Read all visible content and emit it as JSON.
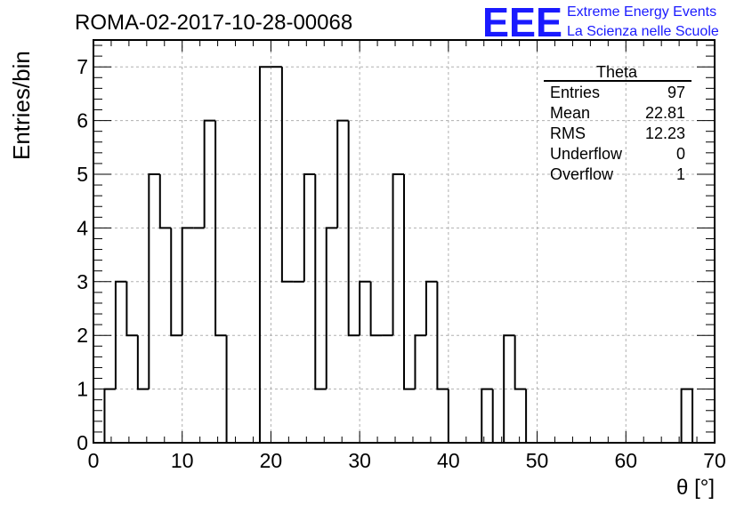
{
  "header": {
    "run_title": "ROMA-02-2017-10-28-00068",
    "logo_text": "EEE",
    "logo_line1": "Extreme Energy Events",
    "logo_line2": "La Scienza nelle Scuole"
  },
  "colors": {
    "logo": "#1a1aff",
    "histogram": "#000000",
    "grid": "#b0b0b0"
  },
  "stats": {
    "title": "Theta",
    "rows": [
      {
        "label": "Entries",
        "value": "97"
      },
      {
        "label": "Mean",
        "value": "22.81"
      },
      {
        "label": "RMS",
        "value": "12.23"
      },
      {
        "label": "Underflow",
        "value": "0"
      },
      {
        "label": "Overflow",
        "value": "1"
      }
    ]
  },
  "chart_data": {
    "type": "bar",
    "title": "",
    "xlabel": "θ [°]",
    "ylabel": "Entries/bin",
    "xlim": [
      0,
      70
    ],
    "ylim": [
      0,
      7.5
    ],
    "bin_width": 1.25,
    "bin_start": 0,
    "values": [
      0,
      1,
      3,
      2,
      1,
      5,
      4,
      2,
      4,
      4,
      6,
      2,
      0,
      0,
      0,
      7,
      7,
      3,
      3,
      5,
      1,
      4,
      6,
      2,
      3,
      2,
      2,
      5,
      1,
      2,
      3,
      1,
      0,
      0,
      0,
      1,
      0,
      2,
      1,
      0,
      0,
      0,
      0,
      0,
      0,
      0,
      0,
      0,
      0,
      0,
      0,
      0,
      0,
      1
    ],
    "xticks": [
      0,
      10,
      20,
      30,
      40,
      50,
      60,
      70
    ],
    "yticks": [
      0,
      1,
      2,
      3,
      4,
      5,
      6,
      7
    ],
    "grid": true,
    "legend": "top-right"
  }
}
